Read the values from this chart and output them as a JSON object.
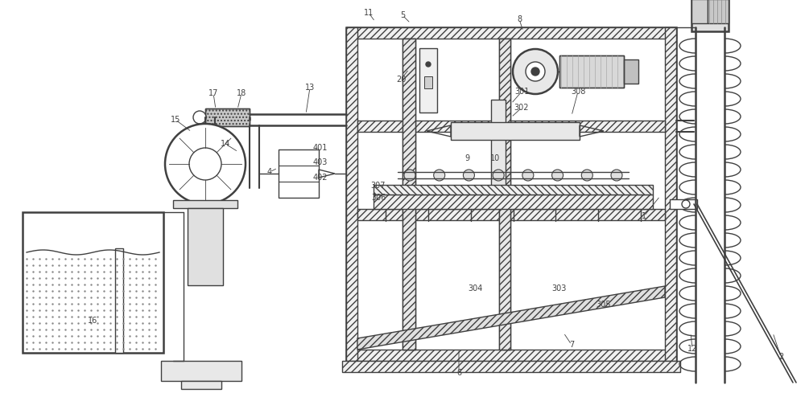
{
  "bg_color": "#ffffff",
  "lc": "#404040",
  "lw": 1.0,
  "tlw": 1.8,
  "figsize": [
    10.0,
    4.94
  ],
  "dpi": 100
}
